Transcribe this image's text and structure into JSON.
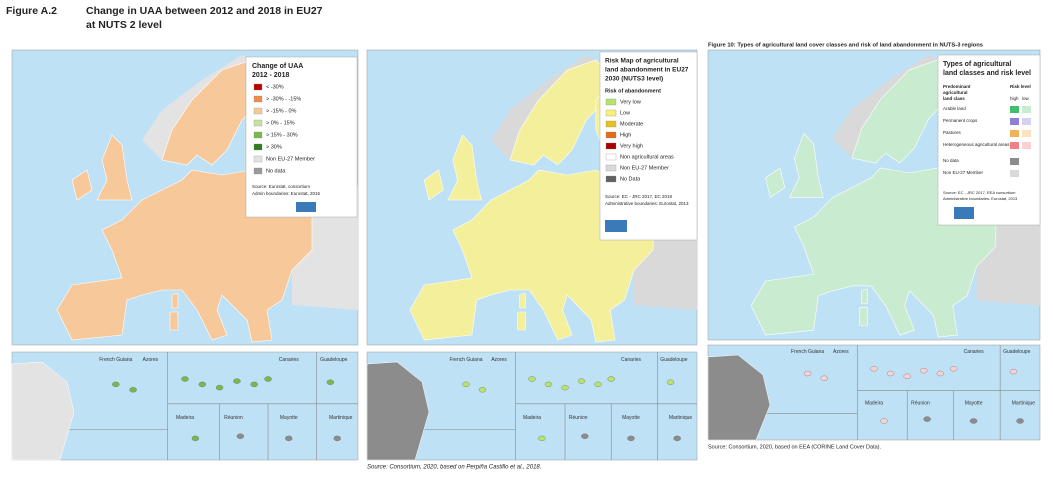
{
  "left": {
    "figure_label": "Figure A.2",
    "title": "Change in UAA between 2012 and 2018 in EU27",
    "title_line2": "at NUTS 2 level",
    "legend": {
      "title": "Change of UAA",
      "subtitle": "2012 - 2018",
      "items": [
        {
          "label": "< -30%",
          "color": "#c00000"
        },
        {
          "label": "> -30% - -15%",
          "color": "#f08a4b"
        },
        {
          "label": "> -15% - 0%",
          "color": "#f7c99a"
        },
        {
          "label": "> 0% - 15%",
          "color": "#c6e2a0"
        },
        {
          "label": "> 15% - 30%",
          "color": "#78b94e"
        },
        {
          "label": "> 30%",
          "color": "#2e7d1e"
        },
        {
          "label": "Non EU-27 Member",
          "color": "#e3e3e3"
        },
        {
          "label": "No data",
          "color": "#9a9a9a"
        }
      ],
      "source": [
        "Source: Eurostat, consortium",
        "Admin boundaries: Eurostat, 2016"
      ]
    }
  },
  "middle": {
    "legend": {
      "title": [
        "Risk Map of agricultural",
        "land abandonment in EU27",
        "2030 (NUTS3 level)"
      ],
      "subtitle": "Risk of abandonment",
      "items": [
        {
          "label": "Very low",
          "color": "#b5e36b"
        },
        {
          "label": "Low",
          "color": "#f7f07a"
        },
        {
          "label": "Moderate",
          "color": "#e7c21c"
        },
        {
          "label": "High",
          "color": "#e36c1a"
        },
        {
          "label": "Very high",
          "color": "#a80000"
        },
        {
          "label": "Non agricultural areas",
          "color": "#ffffff"
        },
        {
          "label": "Non EU-27 Member",
          "color": "#d9d9d9"
        },
        {
          "label": "No Data",
          "color": "#606060"
        }
      ],
      "source": [
        "Source: EC - JRC 2017, EC 2018",
        "Administrative boundaries: Eurostat, 2013"
      ]
    },
    "footer": "Source: Consortium, 2020, based on Perpiña Castillo et al., 2018."
  },
  "right": {
    "figure_title": "Figure 10: Types of agricultural land cover classes and risk of land abandonment in NUTS-3 regions",
    "legend": {
      "title": [
        "Types of agricultural",
        "land classes and risk level"
      ],
      "column_head": [
        "Predominant",
        "agricultural",
        "land class"
      ],
      "risk_head": "Risk level",
      "high": "high",
      "low": "low",
      "items": [
        {
          "label": "Arable land",
          "colors": [
            "#3fbf6b",
            "#c9ecd0"
          ]
        },
        {
          "label": "Permanent crops",
          "colors": [
            "#8d7fd6",
            "#d6d0f2"
          ]
        },
        {
          "label": "Pastures",
          "colors": [
            "#f2b25a",
            "#fbe3c0"
          ]
        },
        {
          "label": "Heterogeneous agricultural areas",
          "colors": [
            "#ef7f86",
            "#f9d1d3"
          ]
        }
      ],
      "extra": [
        {
          "label": "No data",
          "color": "#8c8c8c"
        },
        {
          "label": "Non EU-27 Member",
          "color": "#d9d9d9"
        }
      ],
      "source": [
        "Source: EC - JRC 2017, EEA consortium",
        "Administrative boundaries: Eurostat, 2013"
      ]
    },
    "footer": "Source: Consortium, 2020, based on EEA (CORINE Land Cover Data)."
  },
  "inset_labels": [
    "French Guiana",
    "Azores",
    "Canaries",
    "Guadeloupe",
    "Madeira",
    "Réunion",
    "Mayotte",
    "Martinique"
  ]
}
